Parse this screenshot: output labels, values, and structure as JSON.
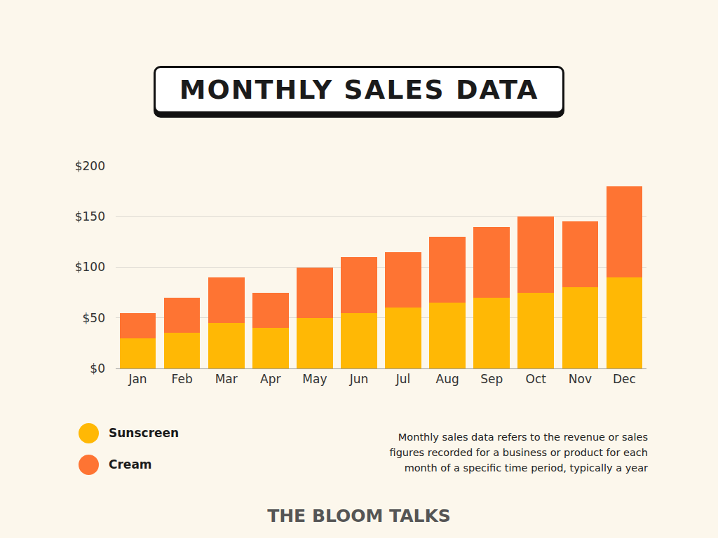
{
  "chart_data": {
    "type": "bar",
    "title": "MONTHLY SALES DATA",
    "categories": [
      "Jan",
      "Feb",
      "Mar",
      "Apr",
      "May",
      "Jun",
      "Jul",
      "Aug",
      "Sep",
      "Oct",
      "Nov",
      "Dec"
    ],
    "series": [
      {
        "name": "Sunscreen",
        "color": "#ffb805",
        "values": [
          30,
          35,
          45,
          40,
          50,
          55,
          60,
          65,
          70,
          75,
          80,
          90
        ]
      },
      {
        "name": "Cream",
        "color": "#fe7433",
        "values": [
          25,
          35,
          45,
          35,
          50,
          55,
          55,
          65,
          70,
          75,
          65,
          90
        ]
      }
    ],
    "stacked": true,
    "ylim": [
      0,
      200
    ],
    "yticks": [
      {
        "value": 0,
        "label": "$0"
      },
      {
        "value": 50,
        "label": "$50"
      },
      {
        "value": 100,
        "label": "$100"
      },
      {
        "value": 150,
        "label": "$150"
      },
      {
        "value": 200,
        "label": "$200"
      }
    ],
    "grid": true,
    "annotations": [
      "Monthly sales data refers to the revenue or sales figures recorded for a business or product for each month of a specific time period, typically a year"
    ],
    "footer": "THE BLOOM TALKS"
  }
}
